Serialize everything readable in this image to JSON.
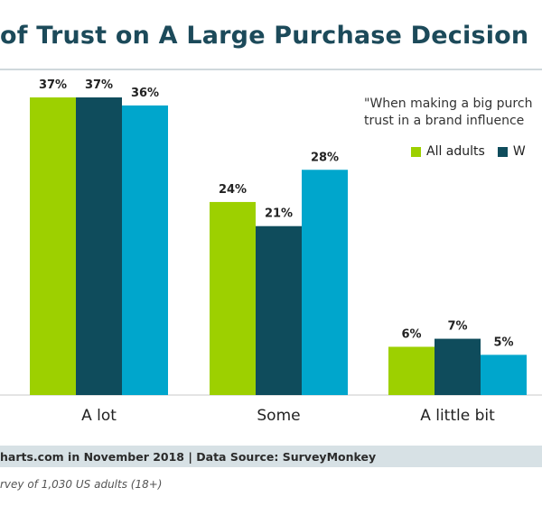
{
  "title": "of Trust on A Large Purchase Decision",
  "quote": {
    "line1": "\"When making a big purch",
    "line2": "trust in a brand influence"
  },
  "legend": [
    {
      "label": "All adults",
      "color": "#9dd000"
    },
    {
      "label": "W",
      "color": "#0f4c5c"
    }
  ],
  "footer": {
    "credit": "harts.com in November 2018 | Data Source: SurveyMonkey",
    "note": "rvey of 1,030 US adults (18+)"
  },
  "colors": {
    "series1": "#9dd000",
    "series2": "#0f4c5c",
    "series3": "#00a6cc",
    "title": "#1c4a5a",
    "footer_bg": "#d7e1e5"
  },
  "chart_data": {
    "type": "bar",
    "categories": [
      "A lot",
      "Some",
      "A little bit"
    ],
    "series": [
      {
        "name": "All adults",
        "values": [
          37,
          24,
          6
        ]
      },
      {
        "name": "W",
        "values": [
          37,
          21,
          7
        ]
      },
      {
        "values": [
          36,
          28,
          5
        ]
      }
    ],
    "ylim": [
      0,
      37
    ],
    "grid": false,
    "legend_position": "top-right"
  }
}
